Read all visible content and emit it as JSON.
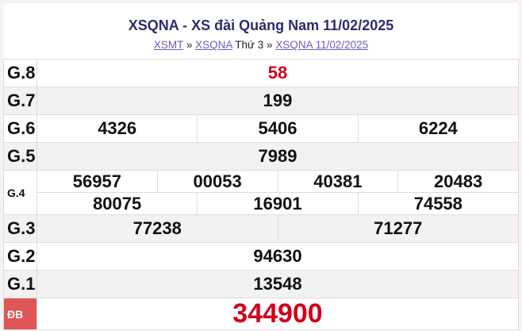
{
  "title": "XSQNA - XS đài Quảng Nam 11/02/2025",
  "breadcrumb": {
    "link1": "XSMT",
    "sep1": "»",
    "link2": "XSQNA",
    "day": "Thứ 3",
    "sep2": "»",
    "link3": "XSQNA 11/02/2025"
  },
  "prizes": {
    "g8": {
      "label": "G.8",
      "values": [
        "58"
      ]
    },
    "g7": {
      "label": "G.7",
      "values": [
        "199"
      ]
    },
    "g6": {
      "label": "G.6",
      "values": [
        "4326",
        "5406",
        "6224"
      ]
    },
    "g5": {
      "label": "G.5",
      "values": [
        "7989"
      ]
    },
    "g4": {
      "label": "G.4",
      "values": [
        "56957",
        "00053",
        "40381",
        "20483",
        "80075",
        "16901",
        "74558"
      ]
    },
    "g3": {
      "label": "G.3",
      "values": [
        "77238",
        "71277"
      ]
    },
    "g2": {
      "label": "G.2",
      "values": [
        "94630"
      ]
    },
    "g1": {
      "label": "G.1",
      "values": [
        "13548"
      ]
    },
    "db": {
      "label": "ĐB",
      "values": [
        "344900"
      ]
    }
  },
  "colors": {
    "title": "#2c2c6e",
    "highlight": "#d0021b",
    "special_label_bg": "#e05555",
    "link": "#6b5fbf"
  }
}
